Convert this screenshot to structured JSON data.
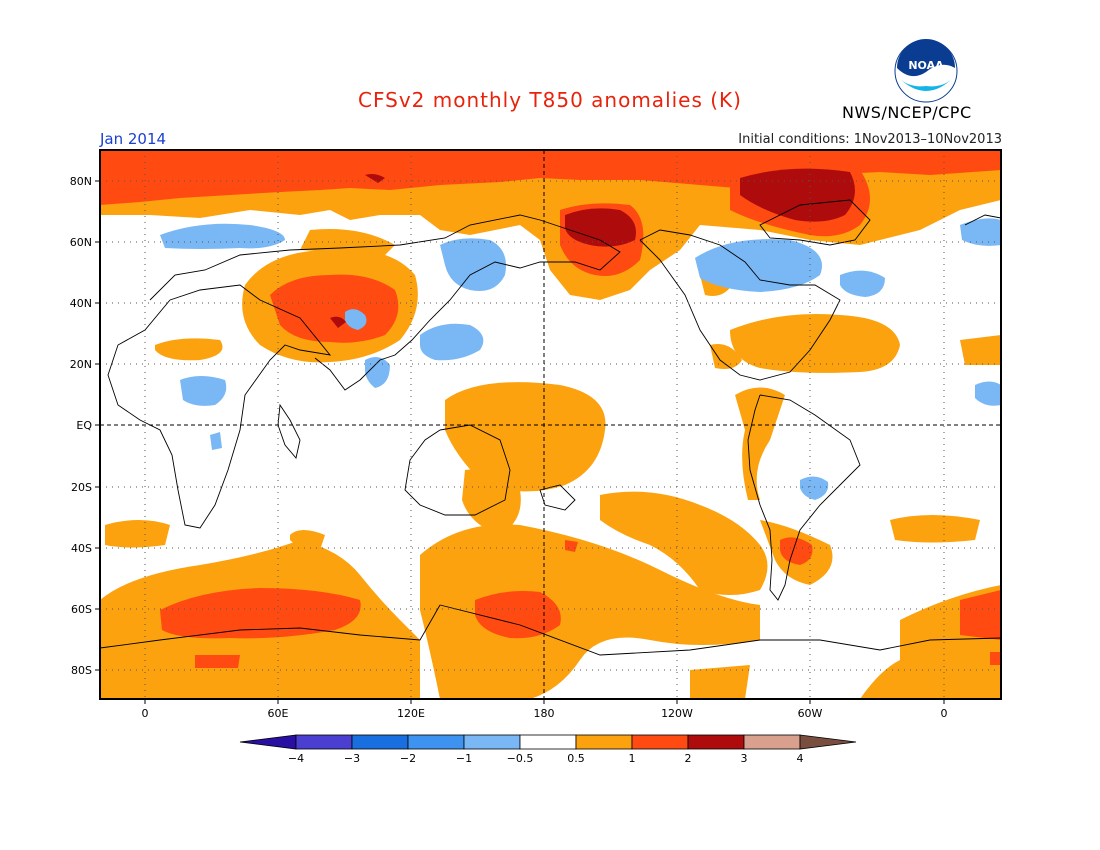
{
  "header": {
    "title": "CFSv2 monthly T850 anomalies (K)",
    "month": "Jan 2014",
    "initial_conditions": "Initial conditions: 1Nov2013–10Nov2013",
    "agency": "NWS/NCEP/CPC",
    "logo_text": "NOAA"
  },
  "map": {
    "lat_labels": [
      "80N",
      "60N",
      "40N",
      "20N",
      "EQ",
      "20S",
      "40S",
      "60S",
      "80S"
    ],
    "lon_labels": [
      "0",
      "60E",
      "120E",
      "180",
      "120W",
      "60W",
      "0"
    ]
  },
  "colorbar": {
    "tick_labels": [
      "−4",
      "−3",
      "−2",
      "−1",
      "−0.5",
      "0.5",
      "1",
      "2",
      "3",
      "4"
    ],
    "colors": [
      "#2a0fa3",
      "#4a3fd0",
      "#1a6fe0",
      "#3f93f0",
      "#79b7f5",
      "#ffffff",
      "#fba20e",
      "#ff4a12",
      "#ae0c0c",
      "#d9a08e",
      "#7a4e3e"
    ]
  },
  "colors": {
    "weak_warm": "#fba20e",
    "moderate_warm": "#ff4a12",
    "strong_warm": "#ae0c0c",
    "weak_cool": "#79b7f5",
    "background": "#ffffff"
  }
}
